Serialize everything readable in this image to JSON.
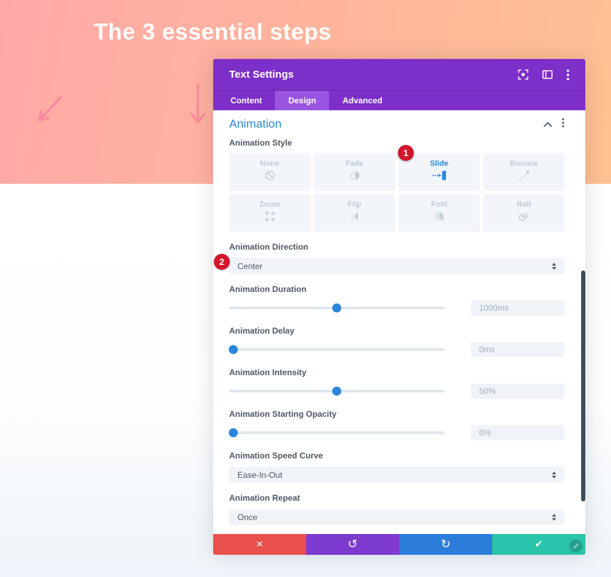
{
  "hero": {
    "title": "The 3 essential steps"
  },
  "modal": {
    "title": "Text Settings",
    "tabs": [
      {
        "label": "Content"
      },
      {
        "label": "Design"
      },
      {
        "label": "Advanced"
      }
    ],
    "active_tab": "Design",
    "section_title": "Animation",
    "style": {
      "label": "Animation Style",
      "selected": "Slide",
      "options": [
        {
          "label": "None",
          "icon": "none-icon"
        },
        {
          "label": "Fade",
          "icon": "fade-icon"
        },
        {
          "label": "Slide",
          "icon": "slide-icon"
        },
        {
          "label": "Bounce",
          "icon": "bounce-icon"
        },
        {
          "label": "Zoom",
          "icon": "zoom-icon"
        },
        {
          "label": "Flip",
          "icon": "flip-icon"
        },
        {
          "label": "Fold",
          "icon": "fold-icon"
        },
        {
          "label": "Roll",
          "icon": "roll-icon"
        }
      ]
    },
    "fields": {
      "direction": {
        "label": "Animation Direction",
        "value": "Center"
      },
      "duration": {
        "label": "Animation Duration",
        "value": "1000ms",
        "percent": 50
      },
      "delay": {
        "label": "Animation Delay",
        "value": "0ms",
        "percent": 2
      },
      "intensity": {
        "label": "Animation Intensity",
        "value": "50%",
        "percent": 50
      },
      "starting_opacity": {
        "label": "Animation Starting Opacity",
        "value": "0%",
        "percent": 2
      },
      "speed_curve": {
        "label": "Animation Speed Curve",
        "value": "Ease-In-Out"
      },
      "repeat": {
        "label": "Animation Repeat",
        "value": "Once"
      }
    },
    "badges": {
      "style_badge": "1",
      "direction_badge": "2"
    },
    "footer_icons": [
      "close-icon",
      "undo-icon",
      "redo-icon",
      "check-icon"
    ],
    "footer_glyphs": {
      "discard": "✕",
      "undo": "↺",
      "redo": "↻",
      "save": "✔"
    }
  },
  "colors": {
    "header_purple": "#7d2fc9",
    "active_tab_purple": "#9a55e0",
    "accent_blue": "#2b87da",
    "badge_red": "#d2152b",
    "discard_red": "#e9504d",
    "undo_purple": "#7e3bd0",
    "redo_blue": "#2b7dd9",
    "save_green": "#29c4a9",
    "band_pink": "#ffa9a7",
    "band_orange": "#ffc192"
  }
}
